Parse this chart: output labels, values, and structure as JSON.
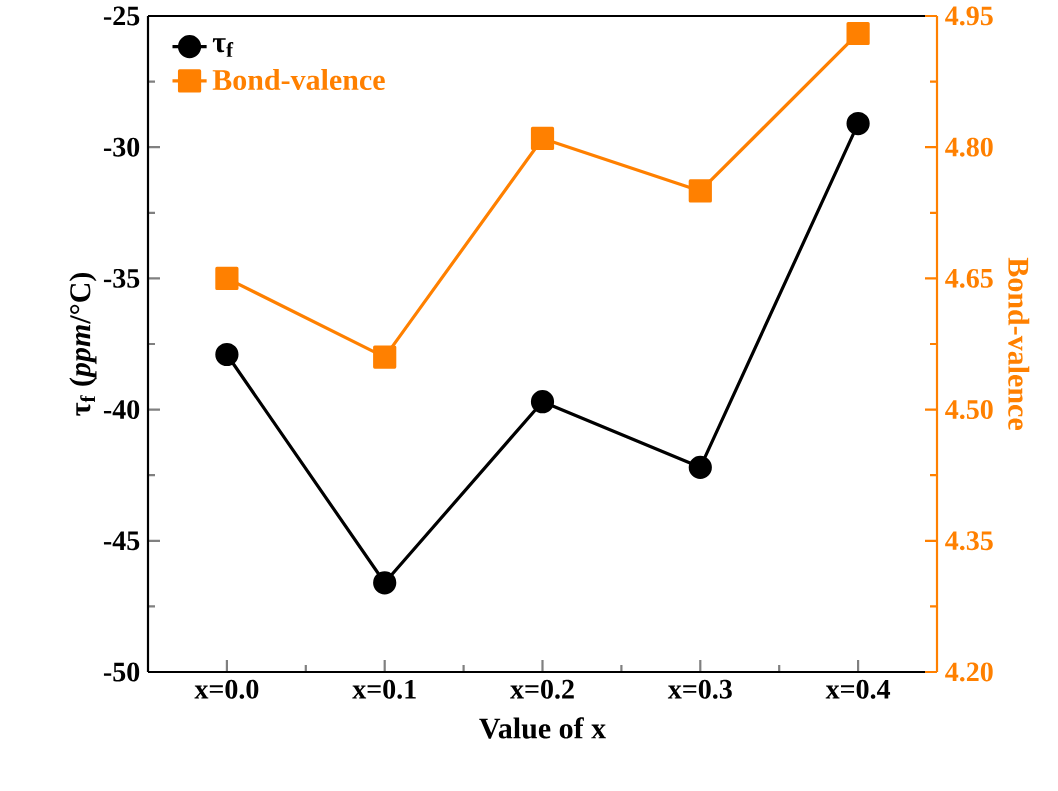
{
  "chart_data": {
    "type": "line",
    "xlabel": "Value of x",
    "ylabel": "τ$_{f}$ (*ppm*/°C)",
    "y2label": "Bond-valence",
    "categories": [
      "x=0.0",
      "x=0.1",
      "x=0.2",
      "x=0.3",
      "x=0.4"
    ],
    "series": [
      {
        "name": "τ$_{f}$",
        "color": "#000000",
        "marker": "circle",
        "values": [
          -37.9,
          -46.6,
          -39.7,
          -42.2,
          -29.1
        ]
      },
      {
        "name": "Bond-valence",
        "color": "#ff8000",
        "marker": "square",
        "axis": "y2",
        "values": [
          4.65,
          4.56,
          4.81,
          4.75,
          4.93
        ]
      }
    ],
    "ylim": [
      -50,
      -25
    ],
    "yticks": [
      -50,
      -45,
      -40,
      -35,
      -30,
      -25
    ],
    "y2lim": [
      4.2,
      4.95
    ],
    "y2ticks": [
      {
        "value": 4.2,
        "label": "4.20"
      },
      {
        "value": 4.35,
        "label": "4.35"
      },
      {
        "value": 4.5,
        "label": "4.50"
      },
      {
        "value": 4.65,
        "label": "4.65"
      },
      {
        "value": 4.8,
        "label": "4.80"
      },
      {
        "value": 4.95,
        "label": "4.95"
      }
    ],
    "legend": "top left",
    "grid": false,
    "line_style": "solid"
  }
}
